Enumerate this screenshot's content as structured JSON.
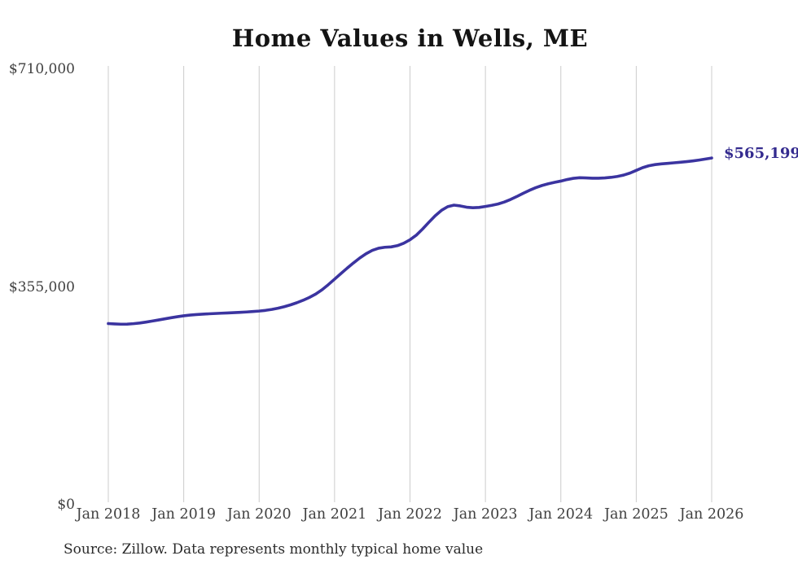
{
  "footer": {
    "source": "Source: Zillow. Data represents monthly typical home value"
  },
  "colors": {
    "line": "#3b34a0",
    "end_label": "#342b8f",
    "gridline": "#cccccc",
    "axis_text": "#404040",
    "title_text": "#141414",
    "background": "#ffffff"
  },
  "chart_data": {
    "type": "line",
    "title": "Home Values in Wells, ME",
    "xlabel": "",
    "ylabel": "",
    "ylim": [
      0,
      710000
    ],
    "grid": "vertical-yearly-only",
    "legend": false,
    "x_tick_labels": [
      "Jan 2018",
      "Jan 2019",
      "Jan 2020",
      "Jan 2021",
      "Jan 2022",
      "Jan 2023",
      "Jan 2024",
      "Jan 2025",
      "Jan 2026"
    ],
    "y_ticks": [
      {
        "label": "$710,000",
        "value": 710000
      },
      {
        "label": "$355,000",
        "value": 355000
      },
      {
        "label": "$0",
        "value": 0
      }
    ],
    "end_annotation": {
      "label": "$565,199",
      "value": 565199
    },
    "series": [
      {
        "name": "Monthly typical home value",
        "start": "2018-01",
        "end": "2026-01",
        "frequency": "monthly",
        "values": [
          295300,
          294700,
          294300,
          294400,
          295100,
          296200,
          297700,
          299400,
          301200,
          303000,
          304800,
          306500,
          308000,
          309100,
          310000,
          310600,
          311200,
          311700,
          312200,
          312600,
          313100,
          313600,
          314200,
          314900,
          315700,
          316800,
          318300,
          320300,
          322800,
          325800,
          329300,
          333300,
          337900,
          343400,
          350300,
          358700,
          367700,
          376700,
          385600,
          394100,
          402100,
          409100,
          414600,
          418100,
          419700,
          420300,
          422300,
          426300,
          431900,
          439400,
          449400,
          460400,
          471000,
          479800,
          485900,
          488400,
          487100,
          485000,
          484100,
          484600,
          486200,
          488000,
          490200,
          493400,
          497600,
          502400,
          507600,
          512500,
          516800,
          520400,
          523200,
          525500,
          527600,
          530100,
          532100,
          533100,
          532800,
          532300,
          532200,
          532700,
          533700,
          535200,
          537400,
          540600,
          545000,
          549400,
          552600,
          554500,
          555600,
          556500,
          557400,
          558300,
          559300,
          560500,
          561900,
          563500,
          565199
        ]
      }
    ]
  }
}
